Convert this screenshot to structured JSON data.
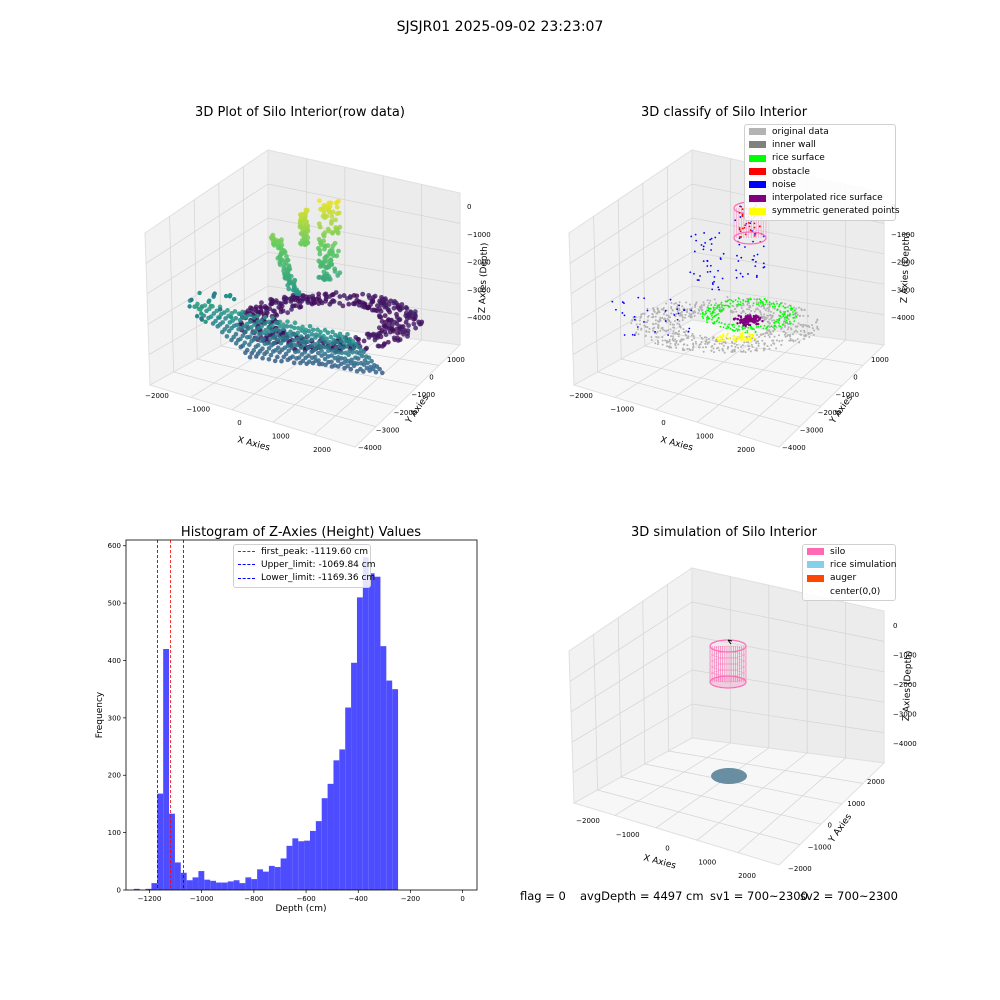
{
  "figure_title": "SJSJR01 2025-09-02 23:23:07",
  "status": {
    "flag": "flag = 0",
    "avg_depth": "avgDepth = 4497 cm",
    "sv1": "sv1 = 700~2300",
    "sv2": "sv2 = 700~2300"
  },
  "chart_data": [
    {
      "id": "raw",
      "type": "scatter3d",
      "title": "3D Plot of Silo Interior(row data)",
      "xlabel": "X Axies",
      "ylabel": "Y Axies",
      "zlabel": "Z Axies (Depth)",
      "x_ticks": [
        -2000,
        -1000,
        0,
        1000,
        2000
      ],
      "y_ticks": [
        1000,
        0,
        -1000,
        -2000,
        -3000,
        -4000
      ],
      "z_ticks": [
        0,
        -1000,
        -2000,
        -3000,
        -4000
      ],
      "colormap": "viridis"
    },
    {
      "id": "classify",
      "type": "scatter3d",
      "title": "3D classify of Silo Interior",
      "xlabel": "X Axies",
      "ylabel": "Y Axies",
      "zlabel": "Z Axies (Depth)",
      "x_ticks": [
        -2000,
        -1000,
        0,
        1000,
        2000
      ],
      "y_ticks": [
        1000,
        0,
        -1000,
        -2000,
        -3000,
        -4000
      ],
      "z_ticks": [
        0,
        -1000,
        -2000,
        -3000,
        -4000
      ],
      "legend": [
        {
          "name": "original data",
          "color": "#b3b3b3"
        },
        {
          "name": "inner wall",
          "color": "#808080"
        },
        {
          "name": "rice surface",
          "color": "#00ff00"
        },
        {
          "name": "obstacle",
          "color": "#ff0000"
        },
        {
          "name": "noise",
          "color": "#0000ff"
        },
        {
          "name": "interpolated rice surface",
          "color": "#800080"
        },
        {
          "name": "symmetric generated points",
          "color": "#ffff00"
        }
      ]
    },
    {
      "id": "hist",
      "type": "bar",
      "title": "Histogram of Z-Axies (Height) Values",
      "xlabel": "Depth (cm)",
      "ylabel": "Frequency",
      "bar_color": "#4d4dff",
      "x_ticks": [
        -1200,
        -1000,
        -800,
        -600,
        -400,
        -200,
        0
      ],
      "y_ticks": [
        0,
        100,
        200,
        300,
        400,
        500,
        600
      ],
      "xlim": [
        -1290,
        55
      ],
      "ylim": [
        0,
        610
      ],
      "bin_width": 22.5,
      "bin_start": -1260,
      "values": [
        2,
        0,
        2,
        12,
        168,
        420,
        133,
        48,
        30,
        17,
        22,
        33,
        18,
        16,
        13,
        13,
        15,
        17,
        12,
        22,
        19,
        36,
        32,
        42,
        40,
        55,
        77,
        90,
        85,
        86,
        103,
        120,
        160,
        185,
        226,
        245,
        318,
        396,
        510,
        580,
        552,
        546,
        425,
        365,
        350
      ],
      "reference_lines": [
        {
          "label": "first_peak: -1119.60 cm",
          "value": -1119.6,
          "color": "#ff0000"
        },
        {
          "label": "Upper_limit: -1069.84 cm",
          "value": -1069.84,
          "color": "#0000ff"
        },
        {
          "label": "Lower_limit: -1169.36 cm",
          "value": -1169.36,
          "color": "#0000ff"
        }
      ]
    },
    {
      "id": "sim",
      "type": "surface3d",
      "title": "3D simulation of Silo Interior",
      "xlabel": "X Axies",
      "ylabel": "Y Axies",
      "zlabel": "Z Axies (Depth)",
      "x_ticks": [
        -2000,
        -1000,
        0,
        1000,
        2000
      ],
      "y_ticks": [
        2000,
        1000,
        0,
        -1000,
        -2000
      ],
      "z_ticks": [
        0,
        -1000,
        -2000,
        -3000,
        -4000
      ],
      "legend": [
        {
          "name": "silo",
          "color": "#ff69b4"
        },
        {
          "name": "rice simulation",
          "color": "#87ceeb"
        },
        {
          "name": "auger",
          "color": "#ff4500"
        },
        {
          "name": "center(0,0)",
          "color": "none"
        }
      ]
    }
  ]
}
